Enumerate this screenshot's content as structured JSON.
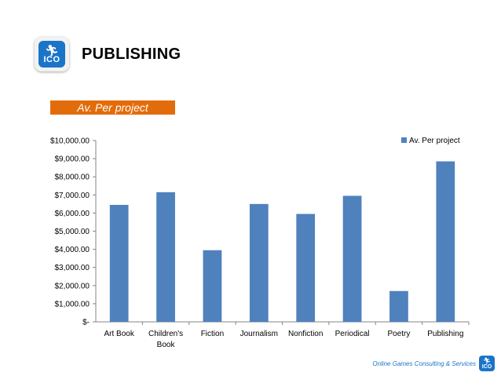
{
  "header": {
    "logo_text": "ICO",
    "title": "PUBLISHING"
  },
  "subtitle": "Av. Per project",
  "footer": {
    "text": "Online Games Consulting & Services",
    "logo_text": "ICO"
  },
  "colors": {
    "bar": "#4f81bd",
    "subtitle_bar": "#e36c0a",
    "brand": "#1a75c9"
  },
  "icons": {
    "logo": "running-man-icon"
  },
  "chart_data": {
    "type": "bar",
    "categories": [
      "Art Book",
      "Children's Book",
      "Fiction",
      "Journalism",
      "Nonfiction",
      "Periodical",
      "Poetry",
      "Publishing"
    ],
    "series": [
      {
        "name": "Av. Per project",
        "values": [
          6450,
          7150,
          3950,
          6500,
          5950,
          6950,
          1700,
          8850
        ]
      }
    ],
    "ylim": [
      0,
      10000
    ],
    "yticks": [
      0,
      1000,
      2000,
      3000,
      4000,
      5000,
      6000,
      7000,
      8000,
      9000,
      10000
    ],
    "ytick_labels": [
      "$-",
      "$1,000.00",
      "$2,000.00",
      "$3,000.00",
      "$4,000.00",
      "$5,000.00",
      "$6,000.00",
      "$7,000.00",
      "$8,000.00",
      "$9,000.00",
      "$10,000.00"
    ],
    "grid": false,
    "legend": "top-right"
  }
}
